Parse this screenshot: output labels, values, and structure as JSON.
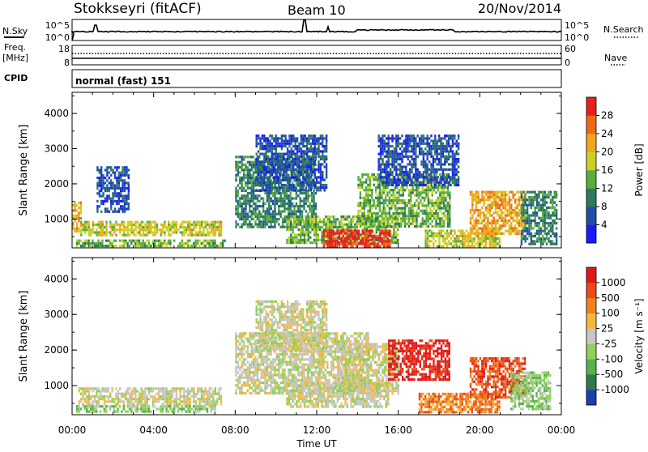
{
  "header": {
    "title": "Stokkseyri (fitACF)",
    "beam": "Beam 10",
    "date": "20/Nov/2014"
  },
  "top_panels": {
    "nsky_label": "N.Sky",
    "nsearch_label": "N.Search",
    "nsky_ticks": [
      "10^5",
      "10^0"
    ],
    "nsearch_ticks": [
      "10^5",
      "10^0"
    ],
    "freq_label_1": "Freq.",
    "freq_label_2": "[MHz]",
    "freq_ticks": [
      "18",
      "8"
    ],
    "nave_label": "Nave",
    "nave_ticks": [
      "60",
      "0"
    ],
    "cpid_label": "CPID",
    "cpid_text": "normal (fast) 151"
  },
  "chart_data": [
    {
      "type": "heatmap",
      "name": "power-panel",
      "xlabel": "",
      "ylabel": "Slant Range [km]",
      "x_range_hours": [
        0,
        24
      ],
      "ylim": [
        180,
        4600
      ],
      "y_ticks": [
        "1000",
        "2000",
        "3000",
        "4000"
      ],
      "colorbar": {
        "label": "Power [dB]",
        "ticks": [
          "4",
          "8",
          "12",
          "16",
          "20",
          "24",
          "28"
        ],
        "colors": [
          "#1a1aff",
          "#1f4fa6",
          "#2e7a5a",
          "#58ad3c",
          "#c9d21e",
          "#f2a51d",
          "#f06a14",
          "#e8201a"
        ]
      },
      "regions": [
        {
          "t0": 0.0,
          "t1": 0.4,
          "r0": 650,
          "r1": 1500,
          "level": 5
        },
        {
          "t0": 0.4,
          "t1": 7.3,
          "r0": 550,
          "r1": 950,
          "level": 4
        },
        {
          "t0": 0.2,
          "t1": 7.5,
          "r0": 250,
          "r1": 420,
          "level": 3
        },
        {
          "t0": 1.2,
          "t1": 2.8,
          "r0": 1200,
          "r1": 2500,
          "level": 1
        },
        {
          "t0": 8.0,
          "t1": 12.0,
          "r0": 800,
          "r1": 2800,
          "level": 2
        },
        {
          "t0": 9.0,
          "t1": 12.5,
          "r0": 1800,
          "r1": 3400,
          "level": 1
        },
        {
          "t0": 10.5,
          "t1": 16.0,
          "r0": 350,
          "r1": 1100,
          "level": 3
        },
        {
          "t0": 12.3,
          "t1": 15.6,
          "r0": 250,
          "r1": 700,
          "level": 7
        },
        {
          "t0": 14.0,
          "t1": 18.5,
          "r0": 800,
          "r1": 2300,
          "level": 3
        },
        {
          "t0": 15.0,
          "t1": 19.0,
          "r0": 2000,
          "r1": 3400,
          "level": 1
        },
        {
          "t0": 17.3,
          "t1": 21.0,
          "r0": 250,
          "r1": 700,
          "level": 4
        },
        {
          "t0": 19.5,
          "t1": 22.2,
          "r0": 600,
          "r1": 1800,
          "level": 5
        },
        {
          "t0": 22.0,
          "t1": 23.8,
          "r0": 300,
          "r1": 1800,
          "level": 2
        }
      ]
    },
    {
      "type": "heatmap",
      "name": "velocity-panel",
      "xlabel": "Time UT",
      "ylabel": "Slant Range [km]",
      "x_range_hours": [
        0,
        24
      ],
      "x_ticks": [
        "00:00",
        "04:00",
        "08:00",
        "12:00",
        "16:00",
        "20:00",
        "00:00"
      ],
      "ylim": [
        180,
        4600
      ],
      "y_ticks": [
        "1000",
        "2000",
        "3000",
        "4000"
      ],
      "colorbar": {
        "label": "Velocity [m s⁻¹]",
        "ticks": [
          "1000",
          "500",
          "100",
          "25",
          "-25",
          "-100",
          "-500",
          "-1000"
        ],
        "colors": [
          "#1c3fb0",
          "#2f7a4d",
          "#56b347",
          "#8fd15a",
          "#c6c6c6",
          "#f5b93a",
          "#f08021",
          "#ec4a17",
          "#e01a1a"
        ]
      },
      "regions": [
        {
          "t0": 0.3,
          "t1": 7.3,
          "r0": 500,
          "r1": 950,
          "level": 4
        },
        {
          "t0": 0.2,
          "t1": 7.0,
          "r0": 250,
          "r1": 450,
          "level": 3
        },
        {
          "t0": 8.0,
          "t1": 14.5,
          "r0": 800,
          "r1": 2500,
          "level": 4
        },
        {
          "t0": 9.0,
          "t1": 12.5,
          "r0": 2000,
          "r1": 3400,
          "level": 4
        },
        {
          "t0": 10.5,
          "t1": 15.5,
          "r0": 400,
          "r1": 1100,
          "level": 4
        },
        {
          "t0": 13.0,
          "t1": 16.0,
          "r0": 800,
          "r1": 2200,
          "level": 4
        },
        {
          "t0": 15.5,
          "t1": 18.5,
          "r0": 1200,
          "r1": 2300,
          "level": 8
        },
        {
          "t0": 17.0,
          "t1": 21.0,
          "r0": 250,
          "r1": 800,
          "level": 6
        },
        {
          "t0": 19.5,
          "t1": 22.2,
          "r0": 700,
          "r1": 1800,
          "level": 7
        },
        {
          "t0": 21.5,
          "t1": 23.5,
          "r0": 350,
          "r1": 1400,
          "level": 3
        }
      ]
    }
  ]
}
